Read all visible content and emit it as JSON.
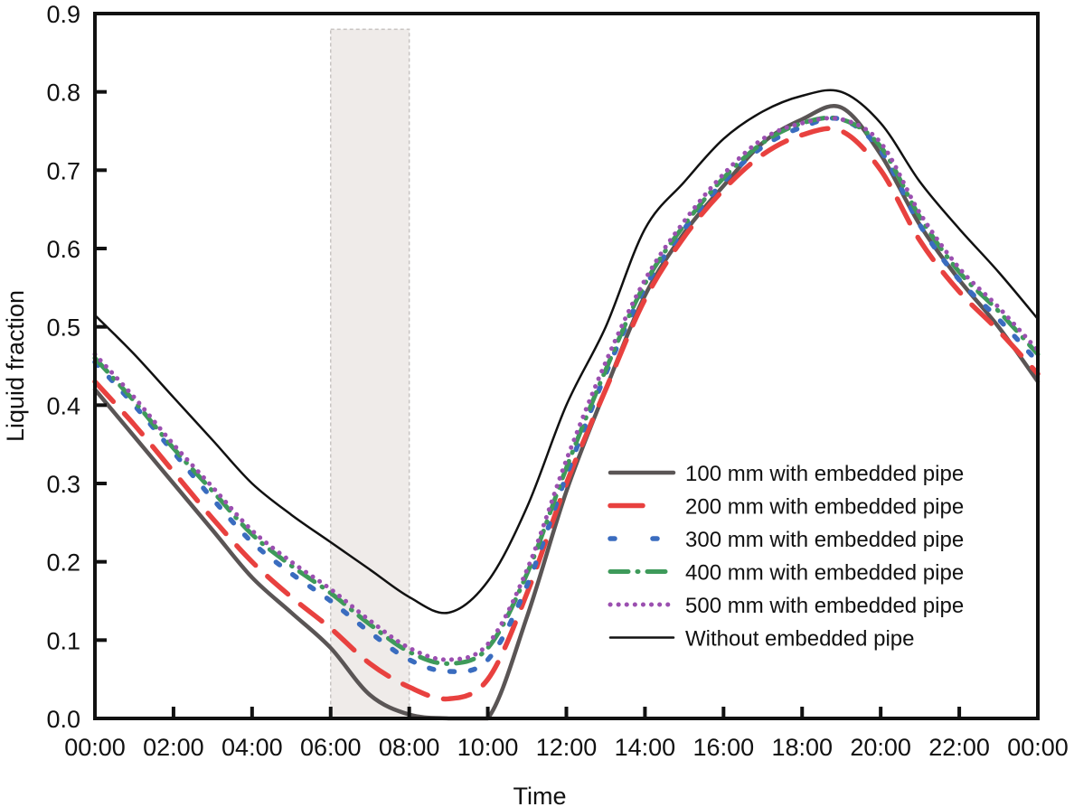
{
  "chart_data": {
    "type": "line",
    "title": "",
    "xlabel": "Time",
    "ylabel": "Liquid fraction",
    "xlim_hours": [
      0,
      24
    ],
    "ylim": [
      0.0,
      0.9
    ],
    "grid": false,
    "legend_position": "lower-right",
    "x_tick_labels": [
      "00:00",
      "02:00",
      "04:00",
      "06:00",
      "08:00",
      "10:00",
      "12:00",
      "14:00",
      "16:00",
      "18:00",
      "20:00",
      "22:00",
      "00:00"
    ],
    "y_tick_labels": [
      "0.0",
      "0.1",
      "0.2",
      "0.3",
      "0.4",
      "0.5",
      "0.6",
      "0.7",
      "0.8",
      "0.9"
    ],
    "y_ticks": [
      0.0,
      0.1,
      0.2,
      0.3,
      0.4,
      0.5,
      0.6,
      0.7,
      0.8,
      0.9
    ],
    "shaded_region": {
      "x_start_hours": 6,
      "x_end_hours": 8,
      "y_top": 0.88,
      "color": "#efebe9"
    },
    "x_hours": [
      0,
      1,
      2,
      3,
      4,
      5,
      6,
      7,
      8,
      9,
      10,
      11,
      12,
      13,
      14,
      15,
      16,
      17,
      18,
      19,
      20,
      21,
      22,
      23,
      24
    ],
    "series": [
      {
        "name": "100 mm with embedded pipe",
        "color": "#5a5555",
        "style": "solid-thick",
        "values": [
          0.42,
          0.36,
          0.3,
          0.24,
          0.18,
          0.135,
          0.09,
          0.03,
          0.005,
          0.0,
          0.0,
          0.13,
          0.29,
          0.42,
          0.54,
          0.62,
          0.68,
          0.735,
          0.765,
          0.78,
          0.72,
          0.63,
          0.56,
          0.5,
          0.43
        ]
      },
      {
        "name": "200 mm with embedded pipe",
        "color": "#e8413f",
        "style": "long-dash",
        "values": [
          0.43,
          0.375,
          0.315,
          0.255,
          0.2,
          0.155,
          0.115,
          0.07,
          0.04,
          0.025,
          0.05,
          0.16,
          0.3,
          0.42,
          0.535,
          0.615,
          0.675,
          0.72,
          0.745,
          0.75,
          0.7,
          0.61,
          0.545,
          0.495,
          0.44
        ]
      },
      {
        "name": "300 mm with embedded pipe",
        "color": "#3a6cbf",
        "style": "dash",
        "values": [
          0.455,
          0.4,
          0.34,
          0.28,
          0.225,
          0.185,
          0.15,
          0.11,
          0.075,
          0.06,
          0.075,
          0.17,
          0.31,
          0.44,
          0.55,
          0.625,
          0.685,
          0.73,
          0.755,
          0.765,
          0.725,
          0.63,
          0.56,
          0.51,
          0.455
        ]
      },
      {
        "name": "400 mm with embedded pipe",
        "color": "#3e9a5a",
        "style": "dash-dot",
        "values": [
          0.46,
          0.405,
          0.345,
          0.29,
          0.235,
          0.195,
          0.16,
          0.12,
          0.085,
          0.07,
          0.09,
          0.185,
          0.32,
          0.445,
          0.555,
          0.63,
          0.69,
          0.735,
          0.76,
          0.765,
          0.73,
          0.64,
          0.57,
          0.52,
          0.465
        ]
      },
      {
        "name": "500 mm with embedded pipe",
        "color": "#9b4fb0",
        "style": "dotted",
        "values": [
          0.465,
          0.41,
          0.35,
          0.295,
          0.24,
          0.2,
          0.165,
          0.125,
          0.09,
          0.075,
          0.095,
          0.19,
          0.33,
          0.455,
          0.56,
          0.635,
          0.695,
          0.74,
          0.76,
          0.765,
          0.735,
          0.645,
          0.575,
          0.525,
          0.47
        ]
      },
      {
        "name": "Without embedded pipe",
        "color": "#111111",
        "style": "solid-thin",
        "values": [
          0.515,
          0.465,
          0.41,
          0.355,
          0.3,
          0.26,
          0.225,
          0.19,
          0.155,
          0.135,
          0.175,
          0.27,
          0.4,
          0.5,
          0.625,
          0.685,
          0.74,
          0.775,
          0.795,
          0.8,
          0.76,
          0.685,
          0.625,
          0.57,
          0.51
        ]
      }
    ]
  }
}
